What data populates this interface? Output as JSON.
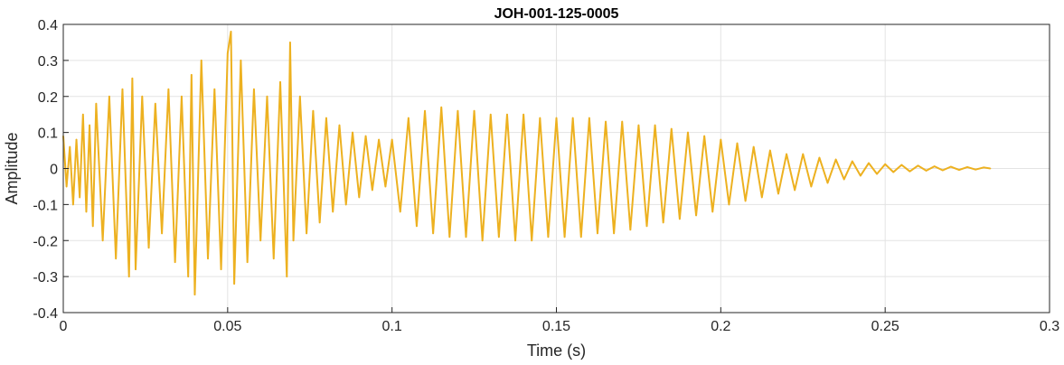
{
  "chart_data": {
    "type": "line",
    "title": "JOH-001-125-0005",
    "xlabel": "Time (s)",
    "ylabel": "Amplitude",
    "xlim": [
      0,
      0.3
    ],
    "ylim": [
      -0.4,
      0.4
    ],
    "xticks": [
      0,
      0.05,
      0.1,
      0.15,
      0.2,
      0.25,
      0.3
    ],
    "xtick_labels": [
      "0",
      "0.05",
      "0.1",
      "0.15",
      "0.2",
      "0.25",
      "0.3"
    ],
    "yticks": [
      -0.4,
      -0.3,
      -0.2,
      -0.1,
      0,
      0.1,
      0.2,
      0.3,
      0.4
    ],
    "ytick_labels": [
      "-0.4",
      "-0.3",
      "-0.2",
      "-0.1",
      "0",
      "0.1",
      "0.2",
      "0.3",
      "0.4"
    ],
    "grid": true,
    "line_color": "#EDB120",
    "series": [
      {
        "name": "",
        "x": [
          0,
          0.001,
          0.002,
          0.003,
          0.004,
          0.005,
          0.006,
          0.007,
          0.008,
          0.009,
          0.01,
          0.012,
          0.014,
          0.016,
          0.018,
          0.02,
          0.021,
          0.022,
          0.024,
          0.026,
          0.028,
          0.03,
          0.032,
          0.034,
          0.036,
          0.038,
          0.039,
          0.04,
          0.042,
          0.044,
          0.046,
          0.048,
          0.05,
          0.051,
          0.052,
          0.054,
          0.056,
          0.058,
          0.06,
          0.062,
          0.064,
          0.066,
          0.068,
          0.069,
          0.07,
          0.072,
          0.074,
          0.076,
          0.078,
          0.08,
          0.082,
          0.084,
          0.086,
          0.088,
          0.09,
          0.092,
          0.094,
          0.096,
          0.098,
          0.1,
          0.1025,
          0.105,
          0.1075,
          0.11,
          0.1125,
          0.115,
          0.1175,
          0.12,
          0.1225,
          0.125,
          0.1275,
          0.13,
          0.1325,
          0.135,
          0.1375,
          0.14,
          0.1425,
          0.145,
          0.1475,
          0.15,
          0.1525,
          0.155,
          0.1575,
          0.16,
          0.1625,
          0.165,
          0.1675,
          0.17,
          0.1725,
          0.175,
          0.1775,
          0.18,
          0.1825,
          0.185,
          0.1875,
          0.19,
          0.1925,
          0.195,
          0.1975,
          0.2,
          0.2025,
          0.205,
          0.2075,
          0.21,
          0.2125,
          0.215,
          0.2175,
          0.22,
          0.2225,
          0.225,
          0.2275,
          0.23,
          0.2325,
          0.235,
          0.2375,
          0.24,
          0.2425,
          0.245,
          0.2475,
          0.25,
          0.2525,
          0.255,
          0.2575,
          0.26,
          0.2625,
          0.265,
          0.2675,
          0.27,
          0.2725,
          0.275,
          0.2775,
          0.28,
          0.282
        ],
        "y": [
          0.09,
          -0.05,
          0.06,
          -0.1,
          0.08,
          -0.08,
          0.15,
          -0.12,
          0.12,
          -0.16,
          0.18,
          -0.2,
          0.2,
          -0.25,
          0.22,
          -0.3,
          0.25,
          -0.28,
          0.2,
          -0.22,
          0.18,
          -0.18,
          0.22,
          -0.26,
          0.2,
          -0.3,
          0.26,
          -0.35,
          0.3,
          -0.25,
          0.22,
          -0.28,
          0.32,
          0.38,
          -0.32,
          0.3,
          -0.26,
          0.22,
          -0.2,
          0.2,
          -0.25,
          0.24,
          -0.3,
          0.35,
          -0.2,
          0.2,
          -0.18,
          0.16,
          -0.15,
          0.14,
          -0.12,
          0.12,
          -0.1,
          0.1,
          -0.08,
          0.09,
          -0.06,
          0.08,
          -0.05,
          0.08,
          -0.12,
          0.14,
          -0.16,
          0.16,
          -0.18,
          0.17,
          -0.19,
          0.16,
          -0.19,
          0.16,
          -0.2,
          0.15,
          -0.19,
          0.15,
          -0.2,
          0.15,
          -0.2,
          0.14,
          -0.19,
          0.14,
          -0.19,
          0.14,
          -0.19,
          0.14,
          -0.18,
          0.13,
          -0.18,
          0.13,
          -0.17,
          0.12,
          -0.16,
          0.12,
          -0.15,
          0.11,
          -0.14,
          0.1,
          -0.13,
          0.09,
          -0.12,
          0.08,
          -0.1,
          0.07,
          -0.09,
          0.06,
          -0.08,
          0.05,
          -0.07,
          0.04,
          -0.06,
          0.04,
          -0.05,
          0.03,
          -0.04,
          0.025,
          -0.03,
          0.02,
          -0.02,
          0.015,
          -0.015,
          0.012,
          -0.01,
          0.01,
          -0.008,
          0.008,
          -0.006,
          0.006,
          -0.005,
          0.005,
          -0.004,
          0.004,
          -0.003,
          0.003,
          0.0
        ]
      }
    ]
  }
}
